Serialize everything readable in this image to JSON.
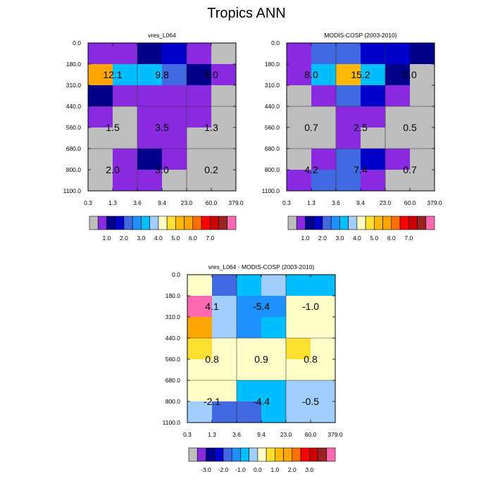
{
  "figure_title": "Tropics ANN",
  "colors": {
    "gray": "#bebebe",
    "purple": "#8a2be2",
    "navy": "#00008b",
    "blue": "#0000cd",
    "royal": "#4169e1",
    "dodger": "#1e90ff",
    "deepsky": "#00bfff",
    "lightsky": "#a0cfff",
    "cream": "#ffffc8",
    "yellow": "#ffe031",
    "gold": "#ffb900",
    "orange": "#ffa500",
    "darkorange": "#ff7000",
    "red": "#ff0000",
    "firebrick": "#cd0000",
    "darkred": "#9b2323",
    "pink": "#ff69b4"
  },
  "chart_data": [
    {
      "type": "heatmap",
      "title": "vres_L064",
      "xlabel": "",
      "ylabel": "",
      "x_ticks": [
        "0.3",
        "1.3",
        "3.6",
        "9.4",
        "23.0",
        "60.0",
        "379.0"
      ],
      "y_ticks": [
        "0.0",
        "180.0",
        "310.0",
        "440.0",
        "560.0",
        "680.0",
        "800.0",
        "1100.0"
      ],
      "cells": [
        [
          "purple",
          "purple",
          "navy",
          "blue",
          "purple",
          "gray"
        ],
        [
          "orange",
          "deepsky",
          "deepsky",
          "royal",
          "navy",
          "purple"
        ],
        [
          "navy",
          "purple",
          "purple",
          "purple",
          "purple",
          "gray"
        ],
        [
          "purple",
          "gray",
          "purple",
          "purple",
          "purple",
          "gray"
        ],
        [
          "gray",
          "gray",
          "purple",
          "purple",
          "gray",
          "gray"
        ],
        [
          "gray",
          "purple",
          "navy",
          "purple",
          "gray",
          "gray"
        ],
        [
          "gray",
          "purple",
          "purple",
          "gray",
          "gray",
          "gray"
        ]
      ],
      "group_labels": [
        "12.1",
        "9.8",
        "6.0",
        "1.5",
        "3.5",
        "1.3",
        "2.0",
        "3.0",
        "0.2"
      ],
      "colorbar": {
        "colors": [
          "gray",
          "purple",
          "navy",
          "blue",
          "royal",
          "dodger",
          "deepsky",
          "lightsky",
          "cream",
          "yellow",
          "gold",
          "orange",
          "darkorange",
          "red",
          "firebrick",
          "darkred",
          "pink"
        ],
        "labels": [
          "1.0",
          "2.0",
          "3.0",
          "4.0",
          "5.0",
          "6.0",
          "7.0"
        ]
      }
    },
    {
      "type": "heatmap",
      "title": "MODIS-COSP (2003-2010)",
      "xlabel": "",
      "ylabel": "",
      "x_ticks": [
        "0.3",
        "1.3",
        "3.6",
        "9.4",
        "23.0",
        "60.0",
        "379.0"
      ],
      "y_ticks": [
        "0.0",
        "180.0",
        "310.0",
        "440.0",
        "560.0",
        "680.0",
        "800.0",
        "1100.0"
      ],
      "cells": [
        [
          "purple",
          "royal",
          "royal",
          "blue",
          "blue",
          "navy"
        ],
        [
          "purple",
          "deepsky",
          "gold",
          "deepsky",
          "navy",
          "gray"
        ],
        [
          "gray",
          "purple",
          "royal",
          "blue",
          "purple",
          "gray"
        ],
        [
          "gray",
          "gray",
          "purple",
          "purple",
          "gray",
          "gray"
        ],
        [
          "gray",
          "gray",
          "purple",
          "gray",
          "gray",
          "gray"
        ],
        [
          "gray",
          "purple",
          "royal",
          "blue",
          "purple",
          "gray"
        ],
        [
          "purple",
          "royal",
          "royal",
          "purple",
          "gray",
          "gray"
        ]
      ],
      "group_labels": [
        "8.0",
        "15.2",
        "5.0",
        "0.7",
        "2.5",
        "0.5",
        "4.2",
        "7.4",
        "0.7"
      ],
      "colorbar": {
        "colors": [
          "gray",
          "purple",
          "navy",
          "blue",
          "royal",
          "dodger",
          "deepsky",
          "lightsky",
          "cream",
          "yellow",
          "gold",
          "orange",
          "darkorange",
          "red",
          "firebrick",
          "darkred",
          "pink"
        ],
        "labels": [
          "1.0",
          "2.0",
          "3.0",
          "4.0",
          "5.0",
          "6.0",
          "7.0"
        ]
      }
    },
    {
      "type": "heatmap",
      "title": "vres_L064 - MODIS-COSP (2003-2010)",
      "xlabel": "",
      "ylabel": "",
      "x_ticks": [
        "0.3",
        "1.3",
        "3.6",
        "9.4",
        "23.0",
        "60.0",
        "379.0"
      ],
      "y_ticks": [
        "0.0",
        "180.0",
        "310.0",
        "440.0",
        "560.0",
        "680.0",
        "800.0",
        "1100.0"
      ],
      "cells": [
        [
          "cream",
          "royal",
          "deepsky",
          "lightsky",
          "deepsky",
          "deepsky"
        ],
        [
          "pink",
          "lightsky",
          "dodger",
          "dodger",
          "cream",
          "cream"
        ],
        [
          "orange",
          "lightsky",
          "dodger",
          "deepsky",
          "cream",
          "cream"
        ],
        [
          "yellow",
          "cream",
          "cream",
          "cream",
          "yellow",
          "cream"
        ],
        [
          "cream",
          "cream",
          "cream",
          "cream",
          "cream",
          "cream"
        ],
        [
          "cream",
          "cream",
          "deepsky",
          "deepsky",
          "lightsky",
          "lightsky"
        ],
        [
          "lightsky",
          "royal",
          "royal",
          "deepsky",
          "lightsky",
          "lightsky"
        ]
      ],
      "group_labels": [
        "4.1",
        "-5.4",
        "-1.0",
        "0.8",
        "0.9",
        "0.8",
        "-2.1",
        "-4.4",
        "-0.5"
      ],
      "colorbar": {
        "colors": [
          "gray",
          "purple",
          "navy",
          "blue",
          "royal",
          "dodger",
          "deepsky",
          "lightsky",
          "cream",
          "yellow",
          "gold",
          "orange",
          "darkorange",
          "red",
          "firebrick",
          "darkred",
          "pink"
        ],
        "labels": [
          "-3.0",
          "-2.0",
          "-1.0",
          "0.0",
          "1.0",
          "2.0",
          "3.0"
        ]
      }
    }
  ]
}
